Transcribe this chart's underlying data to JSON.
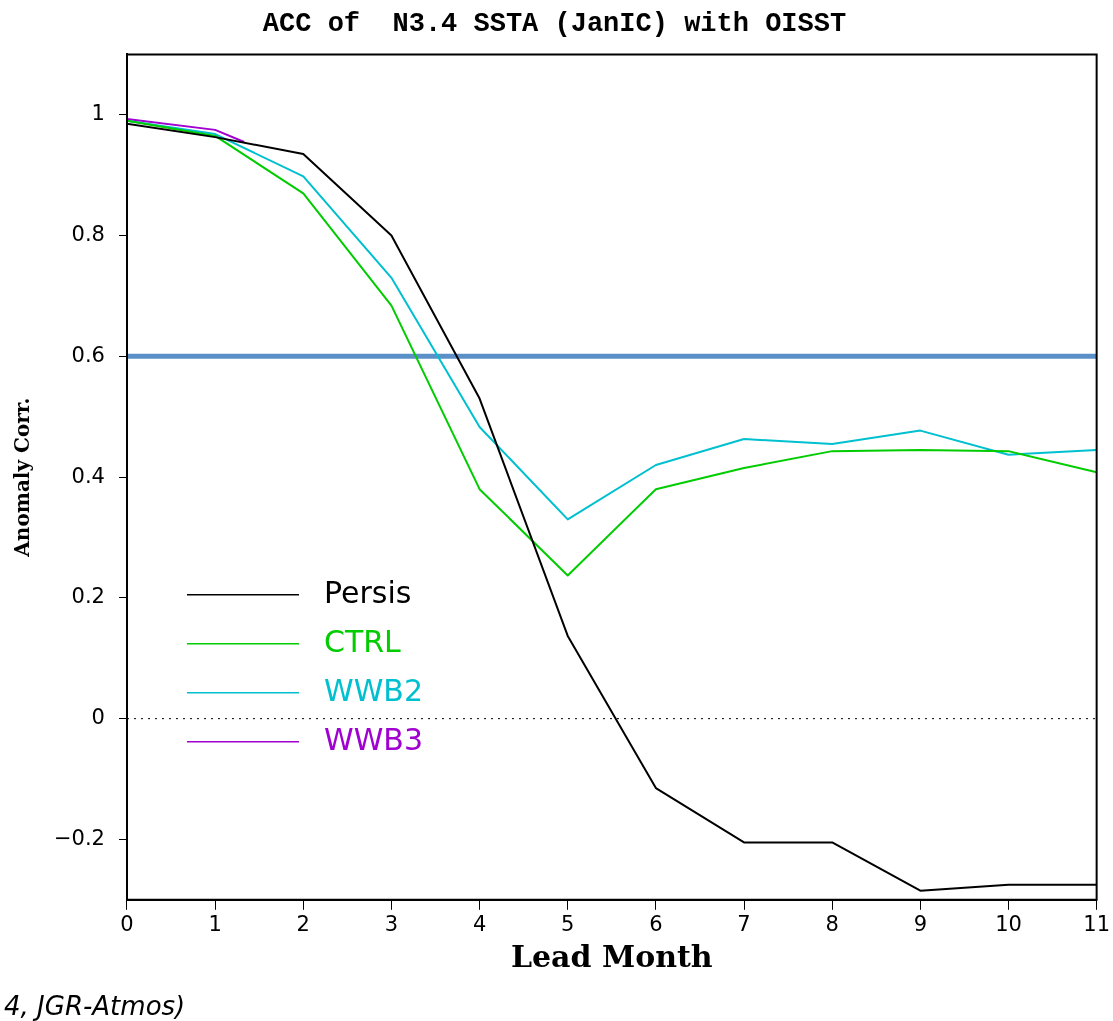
{
  "chart_data": {
    "type": "line",
    "title": "ACC of  N3.4 SSTA (JanIC) with OISST",
    "xlabel": "Lead Month",
    "ylabel": "Anomaly Corr.",
    "x": [
      0,
      1,
      2,
      3,
      4,
      5,
      6,
      7,
      8,
      9,
      10,
      11
    ],
    "xlim": [
      0,
      11
    ],
    "xticks": [
      0,
      1,
      2,
      3,
      4,
      5,
      6,
      7,
      8,
      9,
      10,
      11
    ],
    "ylim": [
      -0.3,
      1.1
    ],
    "yticks": [
      -0.2,
      0,
      0.2,
      0.4,
      0.6,
      0.8,
      1
    ],
    "series": [
      {
        "name": "Persis",
        "color": "#000000",
        "values": [
          0.985,
          0.963,
          0.935,
          0.8,
          0.53,
          0.137,
          -0.115,
          -0.205,
          -0.205,
          -0.285,
          -0.275,
          -0.275
        ]
      },
      {
        "name": "CTRL",
        "color": "#00cc00",
        "values": [
          0.99,
          0.965,
          0.87,
          0.684,
          0.38,
          0.237,
          0.38,
          0.415,
          0.443,
          0.445,
          0.443,
          0.408
        ]
      },
      {
        "name": "WWB2",
        "color": "#00c0d0",
        "values": [
          0.99,
          0.968,
          0.898,
          0.73,
          0.483,
          0.33,
          0.42,
          0.463,
          0.455,
          0.477,
          0.437,
          0.445
        ]
      },
      {
        "name": "WWB3",
        "color": "#a000d0",
        "x": [
          0,
          1,
          1.33
        ],
        "values": [
          0.993,
          0.975,
          0.955
        ]
      }
    ],
    "ref_lines": [
      {
        "axis": "y",
        "value": 0.6,
        "color": "#5b8fc7",
        "line_style": "solid"
      },
      {
        "axis": "y",
        "value": 0,
        "color": "#000000",
        "line_style": "dotted"
      }
    ],
    "legend": "bottom left",
    "grid": false,
    "marker": "none",
    "annotations": [
      "4, JGR-Atmos)"
    ]
  }
}
